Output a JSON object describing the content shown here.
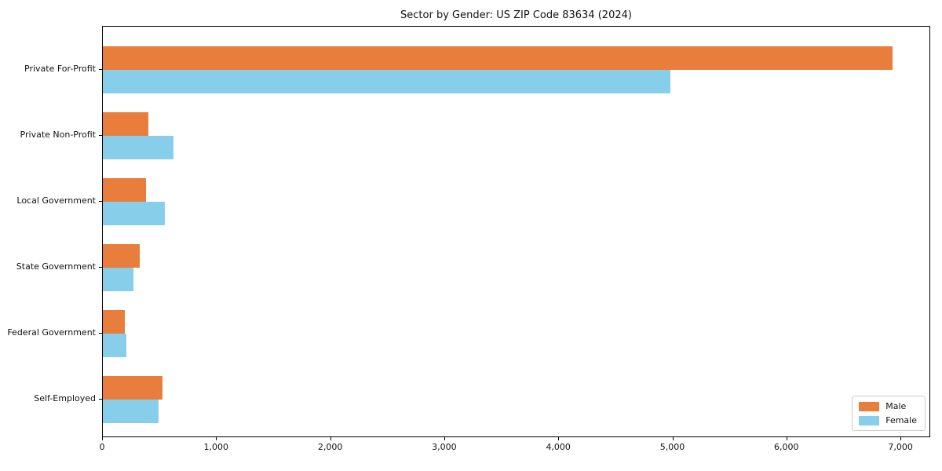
{
  "chart_data": {
    "type": "bar",
    "orientation": "horizontal",
    "title": "Sector by Gender: US ZIP Code 83634 (2024)",
    "categories": [
      "Private For-Profit",
      "Private Non-Profit",
      "Local Government",
      "State Government",
      "Federal Government",
      "Self-Employed"
    ],
    "series": [
      {
        "name": "Male",
        "color": "#e87d3c",
        "values": [
          6920,
          400,
          380,
          320,
          190,
          525
        ]
      },
      {
        "name": "Female",
        "color": "#87ceeb",
        "values": [
          4975,
          620,
          545,
          270,
          205,
          490
        ]
      }
    ],
    "xlabel": "",
    "ylabel": "",
    "xlim": [
      0,
      7261
    ],
    "x_ticks": [
      {
        "value": 0,
        "label": "0"
      },
      {
        "value": 1000,
        "label": "1,000"
      },
      {
        "value": 2000,
        "label": "2,000"
      },
      {
        "value": 3000,
        "label": "3,000"
      },
      {
        "value": 4000,
        "label": "4,000"
      },
      {
        "value": 5000,
        "label": "5,000"
      },
      {
        "value": 6000,
        "label": "6,000"
      },
      {
        "value": 7000,
        "label": "7,000"
      }
    ],
    "grid": false,
    "legend": {
      "position": "lower right",
      "entries": [
        "Male",
        "Female"
      ]
    }
  }
}
